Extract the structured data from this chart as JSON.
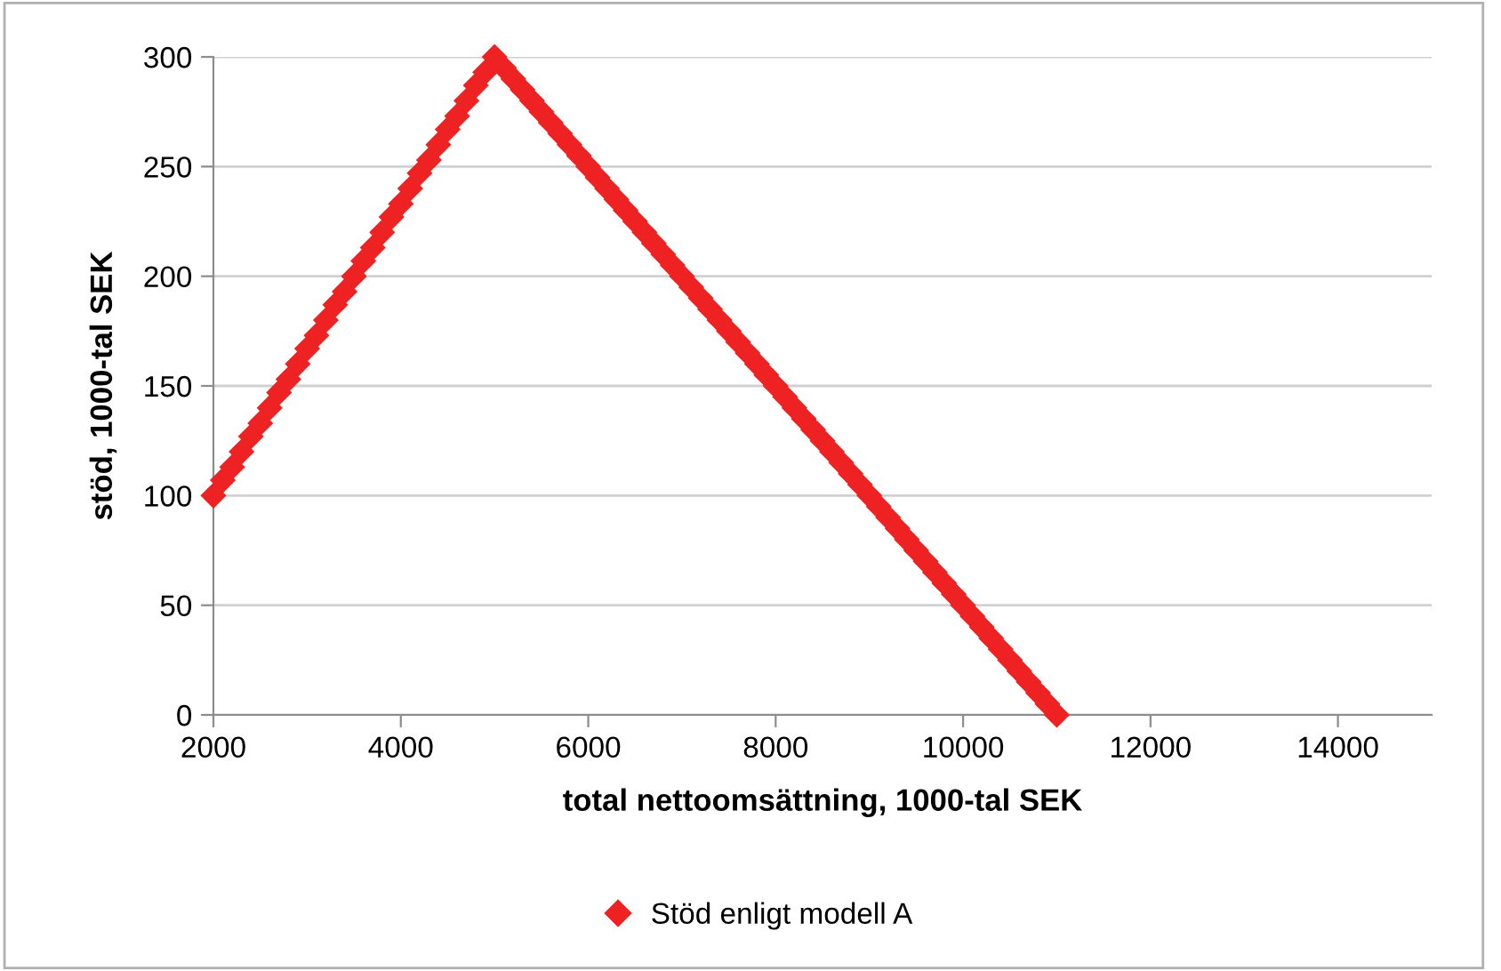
{
  "chart_data": {
    "type": "scatter",
    "xlabel": "total nettoomsättning, 1000-tal SEK",
    "ylabel": "stöd, 1000-tal SEK",
    "x": [
      2000,
      2100,
      2200,
      2300,
      2400,
      2500,
      2600,
      2700,
      2800,
      2900,
      3000,
      3100,
      3200,
      3300,
      3400,
      3500,
      3600,
      3700,
      3800,
      3900,
      4000,
      4100,
      4200,
      4300,
      4400,
      4500,
      4600,
      4700,
      4800,
      4900,
      5000,
      5100,
      5200,
      5300,
      5400,
      5500,
      5600,
      5700,
      5800,
      5900,
      6000,
      6100,
      6200,
      6300,
      6400,
      6500,
      6600,
      6700,
      6800,
      6900,
      7000,
      7100,
      7200,
      7300,
      7400,
      7500,
      7600,
      7700,
      7800,
      7900,
      8000,
      8100,
      8200,
      8300,
      8400,
      8500,
      8600,
      8700,
      8800,
      8900,
      9000,
      9100,
      9200,
      9300,
      9400,
      9500,
      9600,
      9700,
      9800,
      9900,
      10000,
      10100,
      10200,
      10300,
      10400,
      10500,
      10600,
      10700,
      10800,
      10900,
      11000
    ],
    "series": [
      {
        "name": "Stöd enligt modell A",
        "color": "#ee2222",
        "values": [
          100,
          107,
          113,
          120,
          127,
          133,
          140,
          147,
          153,
          160,
          167,
          173,
          180,
          187,
          193,
          200,
          207,
          213,
          220,
          227,
          233,
          240,
          247,
          253,
          260,
          267,
          273,
          280,
          287,
          293,
          300,
          295,
          290,
          285,
          280,
          275,
          270,
          265,
          260,
          255,
          250,
          245,
          240,
          235,
          230,
          225,
          220,
          215,
          210,
          205,
          200,
          195,
          190,
          185,
          180,
          175,
          170,
          165,
          160,
          155,
          150,
          145,
          140,
          135,
          130,
          125,
          120,
          115,
          110,
          105,
          100,
          95,
          90,
          85,
          80,
          75,
          70,
          65,
          60,
          55,
          50,
          45,
          40,
          35,
          30,
          25,
          20,
          15,
          10,
          5,
          0
        ]
      }
    ],
    "xlim": [
      2000,
      15000
    ],
    "xticks": [
      2000,
      4000,
      6000,
      8000,
      10000,
      12000,
      14000
    ],
    "ylim": [
      0,
      300
    ],
    "yticks": [
      0,
      50,
      100,
      150,
      200,
      250,
      300
    ],
    "grid": "y",
    "legend": "bottom",
    "marker": "diamond"
  }
}
